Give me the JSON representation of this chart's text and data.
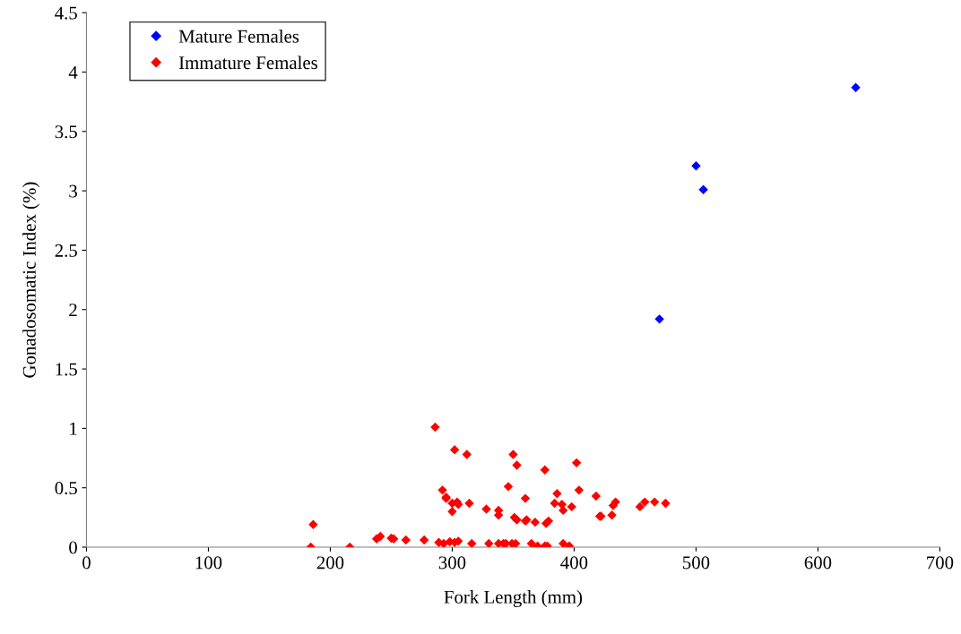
{
  "chart_data": {
    "type": "scatter",
    "xlabel": "Fork Length (mm)",
    "ylabel": "Gonadosomatic Index (%)",
    "xlim": [
      0,
      700
    ],
    "xticks": [
      0,
      100,
      200,
      300,
      400,
      500,
      600,
      700
    ],
    "ylim": [
      0,
      4.5
    ],
    "yticks": [
      0,
      0.5,
      1,
      1.5,
      2,
      2.5,
      3,
      3.5,
      4,
      4.5
    ],
    "grid": false,
    "legend": "top left",
    "marker": "diamond",
    "series": [
      {
        "name": "Mature Females",
        "color": "#0000ff",
        "x": [
          500,
          506,
          470,
          631
        ],
        "values": [
          3.21,
          3.01,
          1.92,
          3.87
        ]
      },
      {
        "name": "Immature Females",
        "color": "#ff0000",
        "x": [
          286,
          302,
          312,
          292,
          295,
          295,
          300,
          304,
          305,
          300,
          314,
          328,
          186,
          184,
          216,
          238,
          241,
          250,
          252,
          262,
          277,
          289,
          293,
          298,
          302,
          305,
          316,
          330,
          350,
          353,
          376,
          402,
          346,
          386,
          404,
          360,
          418,
          338,
          338,
          384,
          390,
          391,
          398,
          351,
          353,
          360,
          361,
          368,
          377,
          379,
          421,
          422,
          431,
          432,
          434,
          454,
          458,
          466,
          475,
          338,
          342,
          344,
          349,
          352,
          365,
          370,
          376,
          378,
          391,
          396
        ],
        "values": [
          1.01,
          0.82,
          0.78,
          0.48,
          0.42,
          0.41,
          0.37,
          0.38,
          0.36,
          0.3,
          0.37,
          0.32,
          0.19,
          0.0,
          0.0,
          0.07,
          0.09,
          0.075,
          0.07,
          0.06,
          0.06,
          0.04,
          0.03,
          0.045,
          0.04,
          0.05,
          0.03,
          0.03,
          0.78,
          0.69,
          0.65,
          0.71,
          0.51,
          0.45,
          0.48,
          0.41,
          0.43,
          0.31,
          0.27,
          0.37,
          0.36,
          0.31,
          0.34,
          0.25,
          0.23,
          0.22,
          0.23,
          0.21,
          0.2,
          0.22,
          0.26,
          0.26,
          0.27,
          0.35,
          0.38,
          0.34,
          0.38,
          0.38,
          0.37,
          0.03,
          0.03,
          0.03,
          0.03,
          0.03,
          0.03,
          0.01,
          0.01,
          0.01,
          0.03,
          0.01
        ]
      }
    ]
  }
}
